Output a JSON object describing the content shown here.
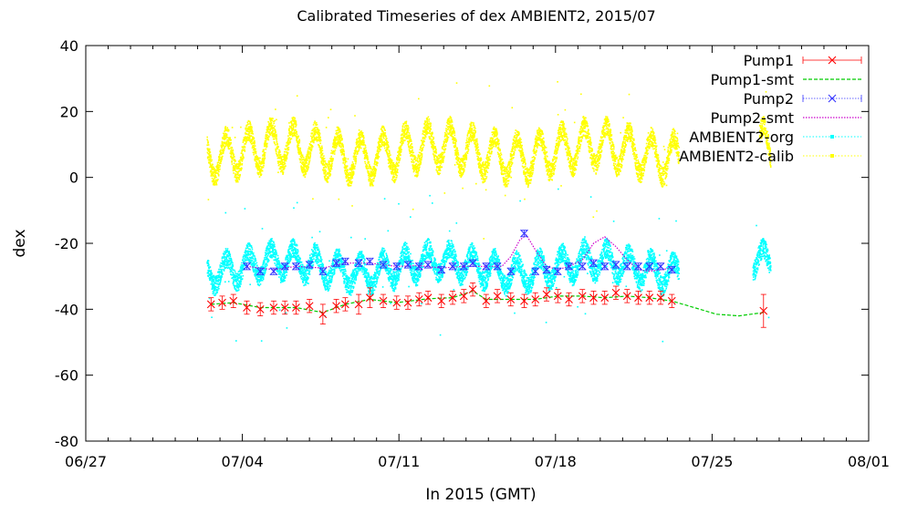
{
  "chart_data": {
    "type": "scatter",
    "title": "Calibrated Timeseries of dex AMBIENT2, 2015/07",
    "xlabel": "In 2015 (GMT)",
    "ylabel": "dex",
    "ylim": [
      -80,
      40
    ],
    "yticks": [
      "40",
      "20",
      "0",
      "-20",
      "-40",
      "-60",
      "-80"
    ],
    "xlim_days": [
      0,
      35
    ],
    "xticks": [
      {
        "label": "06/27",
        "day": 0
      },
      {
        "label": "07/04",
        "day": 7
      },
      {
        "label": "07/11",
        "day": 14
      },
      {
        "label": "07/18",
        "day": 21
      },
      {
        "label": "07/25",
        "day": 28
      },
      {
        "label": "08/01",
        "day": 35
      }
    ],
    "grid": false,
    "legend_position": "top-right",
    "series": [
      {
        "name": "Pump1",
        "color": "#ff0000",
        "marker": "x",
        "errorbars": true,
        "points": [
          [
            5.6,
            -38.5,
            2
          ],
          [
            6.1,
            -38,
            2
          ],
          [
            6.6,
            -37.5,
            2
          ],
          [
            7.2,
            -39.5,
            2
          ],
          [
            7.8,
            -40,
            2
          ],
          [
            8.4,
            -39.5,
            2
          ],
          [
            8.9,
            -39.5,
            2
          ],
          [
            9.4,
            -39.5,
            2
          ],
          [
            10.0,
            -39,
            2
          ],
          [
            10.6,
            -41.5,
            3
          ],
          [
            11.2,
            -39,
            2
          ],
          [
            11.6,
            -38.5,
            2
          ],
          [
            12.2,
            -38.5,
            3
          ],
          [
            12.7,
            -36.5,
            3
          ],
          [
            13.3,
            -37.5,
            2
          ],
          [
            13.9,
            -38,
            2
          ],
          [
            14.4,
            -38,
            2
          ],
          [
            14.9,
            -37,
            2
          ],
          [
            15.3,
            -36.5,
            2
          ],
          [
            15.9,
            -37.5,
            2
          ],
          [
            16.4,
            -36.5,
            2
          ],
          [
            16.9,
            -36,
            2
          ],
          [
            17.3,
            -34,
            2
          ],
          [
            17.9,
            -37.5,
            2
          ],
          [
            18.4,
            -36,
            2
          ],
          [
            19.0,
            -37,
            2
          ],
          [
            19.6,
            -37.5,
            2
          ],
          [
            20.1,
            -37,
            2
          ],
          [
            20.6,
            -35.5,
            2
          ],
          [
            21.1,
            -36,
            2
          ],
          [
            21.6,
            -37,
            2
          ],
          [
            22.2,
            -36,
            2
          ],
          [
            22.7,
            -36.5,
            2
          ],
          [
            23.2,
            -36.5,
            2
          ],
          [
            23.7,
            -35,
            2
          ],
          [
            24.2,
            -36,
            2
          ],
          [
            24.7,
            -36.5,
            2
          ],
          [
            25.2,
            -36.5,
            2
          ],
          [
            25.7,
            -36.5,
            2
          ],
          [
            26.2,
            -37.5,
            2
          ],
          [
            30.3,
            -40.5,
            5
          ]
        ]
      },
      {
        "name": "Pump1-smt",
        "color": "#00cc00",
        "style": "dashed-line",
        "points": [
          [
            5.6,
            -38.5
          ],
          [
            6.6,
            -38
          ],
          [
            7.8,
            -39.5
          ],
          [
            9.4,
            -39.5
          ],
          [
            10.6,
            -41
          ],
          [
            11.6,
            -38.5
          ],
          [
            12.7,
            -37
          ],
          [
            13.9,
            -38
          ],
          [
            15.3,
            -36.8
          ],
          [
            16.4,
            -36.5
          ],
          [
            17.3,
            -34.5
          ],
          [
            17.9,
            -37
          ],
          [
            19.0,
            -37
          ],
          [
            20.1,
            -37
          ],
          [
            21.1,
            -36
          ],
          [
            22.2,
            -36
          ],
          [
            23.2,
            -36.5
          ],
          [
            24.2,
            -36
          ],
          [
            25.2,
            -36.5
          ],
          [
            26.2,
            -37.5
          ],
          [
            27.2,
            -39.5
          ],
          [
            28.2,
            -41.5
          ],
          [
            29.2,
            -42
          ],
          [
            30.3,
            -41
          ]
        ]
      },
      {
        "name": "Pump2",
        "color": "#3333ff",
        "marker": "x",
        "errorbars": true,
        "points": [
          [
            7.2,
            -27,
            1
          ],
          [
            7.8,
            -28.5,
            1
          ],
          [
            8.4,
            -28.5,
            1
          ],
          [
            8.9,
            -27,
            1
          ],
          [
            9.4,
            -27,
            1
          ],
          [
            10.0,
            -26.5,
            1
          ],
          [
            10.6,
            -28.5,
            1
          ],
          [
            11.2,
            -26,
            1
          ],
          [
            11.6,
            -25.5,
            1
          ],
          [
            12.2,
            -26,
            1
          ],
          [
            12.7,
            -25.5,
            1
          ],
          [
            13.3,
            -26.5,
            1
          ],
          [
            13.9,
            -27,
            1
          ],
          [
            14.4,
            -26.5,
            1
          ],
          [
            14.9,
            -27,
            1
          ],
          [
            15.3,
            -26.5,
            1
          ],
          [
            15.9,
            -28,
            1
          ],
          [
            16.4,
            -27,
            1
          ],
          [
            16.9,
            -27,
            1
          ],
          [
            17.3,
            -26,
            1
          ],
          [
            17.9,
            -27,
            1
          ],
          [
            18.4,
            -27,
            1
          ],
          [
            19.0,
            -28.5,
            1
          ],
          [
            19.6,
            -17,
            1
          ],
          [
            20.1,
            -28.5,
            1
          ],
          [
            20.6,
            -28,
            1
          ],
          [
            21.1,
            -28.5,
            1
          ],
          [
            21.6,
            -27,
            1
          ],
          [
            22.2,
            -27,
            1
          ],
          [
            22.7,
            -26,
            1
          ],
          [
            23.2,
            -27,
            1
          ],
          [
            23.7,
            -26.5,
            1
          ],
          [
            24.2,
            -27,
            1
          ],
          [
            24.7,
            -27,
            1
          ],
          [
            25.2,
            -27,
            1
          ],
          [
            25.7,
            -27,
            1
          ],
          [
            26.2,
            -28,
            1
          ]
        ]
      },
      {
        "name": "Pump2-smt",
        "color": "#cc00cc",
        "style": "dotted-line",
        "points": [
          [
            7.2,
            -27
          ],
          [
            8.4,
            -28
          ],
          [
            9.4,
            -27
          ],
          [
            10.6,
            -27.5
          ],
          [
            11.6,
            -26
          ],
          [
            12.7,
            -26
          ],
          [
            13.9,
            -27
          ],
          [
            14.9,
            -26.8
          ],
          [
            15.9,
            -27.5
          ],
          [
            16.9,
            -27
          ],
          [
            17.9,
            -27
          ],
          [
            18.6,
            -27
          ],
          [
            19.0,
            -24
          ],
          [
            19.4,
            -19
          ],
          [
            19.7,
            -17.5
          ],
          [
            20.1,
            -22
          ],
          [
            20.6,
            -27
          ],
          [
            21.1,
            -28
          ],
          [
            21.6,
            -27
          ],
          [
            22.2,
            -25
          ],
          [
            22.7,
            -20
          ],
          [
            23.2,
            -18
          ],
          [
            23.7,
            -21
          ],
          [
            24.2,
            -25
          ],
          [
            24.7,
            -28
          ],
          [
            25.2,
            -28.5
          ],
          [
            25.7,
            -28
          ],
          [
            26.2,
            -27.5
          ]
        ]
      },
      {
        "name": "AMBIENT2-org",
        "color": "#00ffff",
        "marker": "dots",
        "band": {
          "center": -27,
          "amplitude": 4,
          "noise": 3
        },
        "ranges": [
          [
            5.4,
            26.5
          ],
          [
            29.8,
            30.6
          ]
        ]
      },
      {
        "name": "AMBIENT2-calib",
        "color": "#ffff00",
        "marker": "dots",
        "band": {
          "center": 8,
          "amplitude": 6,
          "noise": 3
        },
        "ranges": [
          [
            5.4,
            26.5
          ],
          [
            30.1,
            30.6
          ]
        ]
      }
    ]
  }
}
